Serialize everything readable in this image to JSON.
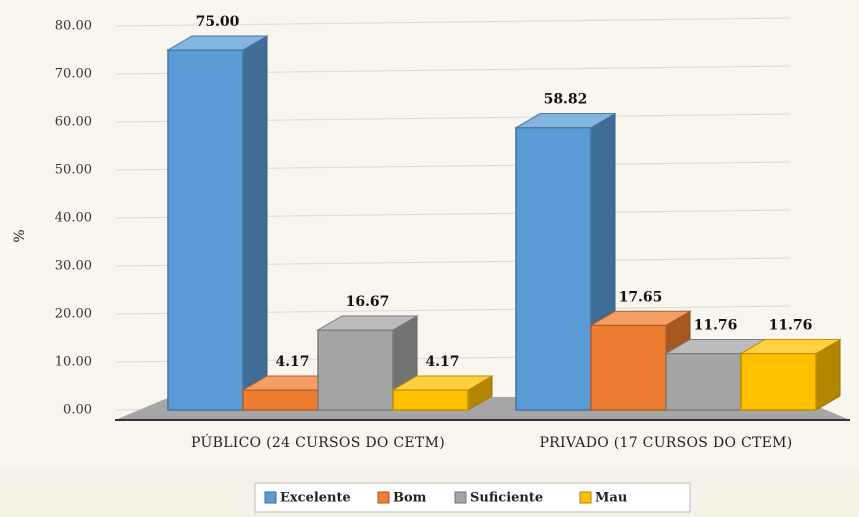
{
  "chart_data": {
    "type": "bar",
    "y_label": "%",
    "categories": [
      "PÚBLICO (24 CURSOS DO CETM)",
      "PRIVADO (17 CURSOS DO CTEM)"
    ],
    "series": [
      {
        "name": "Excelente",
        "color": "#5b9bd5",
        "values": [
          75,
          58.82
        ],
        "value_labels": [
          "75.00",
          "58.82"
        ]
      },
      {
        "name": "Bom",
        "color": "#ed7d31",
        "values": [
          4.17,
          17.65
        ],
        "value_labels": [
          "4.17",
          "17.65"
        ]
      },
      {
        "name": "Suficiente",
        "color": "#a5a5a5",
        "values": [
          16.67,
          11.76
        ],
        "value_labels": [
          "16.67",
          "11.76"
        ]
      },
      {
        "name": "Mau",
        "color": "#ffc000",
        "values": [
          4.17,
          11.76
        ],
        "value_labels": [
          "4.17",
          "11.76"
        ]
      }
    ],
    "ylim": [
      0,
      80
    ],
    "yticks": [
      {
        "value": 0,
        "label": "0.00"
      },
      {
        "value": 10,
        "label": "10.00"
      },
      {
        "value": 20,
        "label": "20.00"
      },
      {
        "value": 30,
        "label": "30.00"
      },
      {
        "value": 40,
        "label": "40.00"
      },
      {
        "value": 50,
        "label": "50.00"
      },
      {
        "value": 60,
        "label": "60.00"
      },
      {
        "value": 70,
        "label": "70.00"
      },
      {
        "value": 80,
        "label": "80.00"
      }
    ],
    "grid": true,
    "legend": "bottom"
  }
}
